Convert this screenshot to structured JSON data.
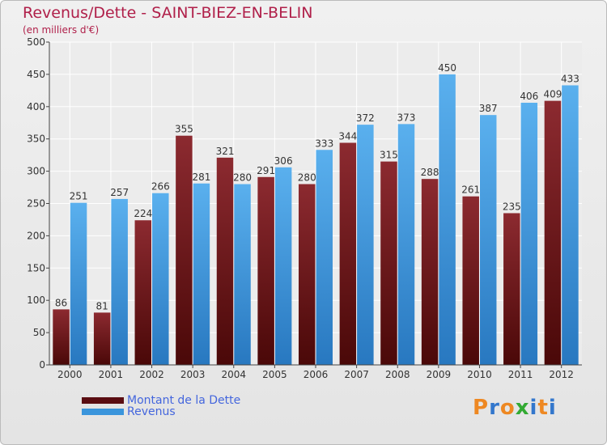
{
  "header": {
    "title": "Revenus/Dette - SAINT-BIEZ-EN-BELIN",
    "subtitle": "(en milliers d'€)"
  },
  "chart_data": {
    "type": "bar",
    "title": "Revenus/Dette - SAINT-BIEZ-EN-BELIN",
    "subtitle": "(en milliers d'€)",
    "categories": [
      "2000",
      "2001",
      "2002",
      "2003",
      "2004",
      "2005",
      "2006",
      "2007",
      "2008",
      "2009",
      "2010",
      "2011",
      "2012"
    ],
    "series": [
      {
        "name": "Montant de la Dette",
        "color": "#7a1a1f",
        "values": [
          86,
          81,
          224,
          355,
          321,
          291,
          280,
          344,
          315,
          288,
          261,
          235,
          409
        ]
      },
      {
        "name": "Revenus",
        "color": "#4aa3e6",
        "values": [
          251,
          257,
          266,
          281,
          280,
          306,
          333,
          372,
          373,
          450,
          387,
          406,
          433
        ]
      }
    ],
    "ylim": [
      0,
      500
    ],
    "yticks": [
      0,
      50,
      100,
      150,
      200,
      250,
      300,
      350,
      400,
      450,
      500
    ],
    "grid": true,
    "legend": "bottom-left"
  },
  "legend": [
    {
      "label": "Montant de la Dette",
      "color": "#7a1a1f"
    },
    {
      "label": "Revenus",
      "color": "#4aa3e6"
    }
  ],
  "logo": {
    "text": "Proxiti",
    "letters": [
      "P",
      "r",
      "o",
      "x",
      "i",
      "t",
      "i"
    ],
    "colors": [
      "#ee8822",
      "#3377cc",
      "#ee8822",
      "#33aa33",
      "#3377cc",
      "#ee8822",
      "#3377cc"
    ]
  }
}
